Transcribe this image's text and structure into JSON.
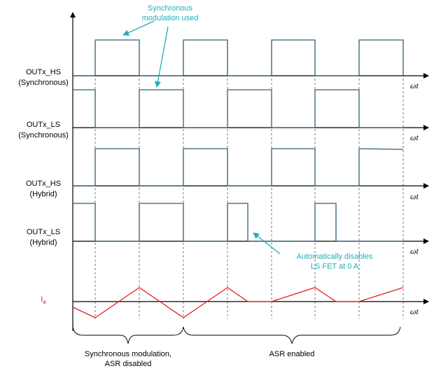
{
  "signals": [
    {
      "line1": "OUTx_HS",
      "line2": "(Synchronous)"
    },
    {
      "line1": "OUTx_LS",
      "line2": "(Synchronous)"
    },
    {
      "line1": "OUTx_HS",
      "line2": "(Hybrid)"
    },
    {
      "line1": "OUTx_LS",
      "line2": "(Hybrid)"
    }
  ],
  "current_label": "I",
  "current_subscript": "a",
  "axis_label": "ωt",
  "annotations": {
    "sync_used_line1": "Synchronous",
    "sync_used_line2": "modulation used",
    "asr_line1": "Automatically disables",
    "asr_line2": "LS FET at 0 A"
  },
  "braces": {
    "left_line1": "Synchronous modulation,",
    "left_line2": "ASR disabled",
    "right_line1": "ASR enabled"
  },
  "colors": {
    "waveform": "#2e5f72",
    "annotation": "#1ab0b8",
    "current": "#e02020",
    "axis": "#000000",
    "grid": "#555555"
  }
}
